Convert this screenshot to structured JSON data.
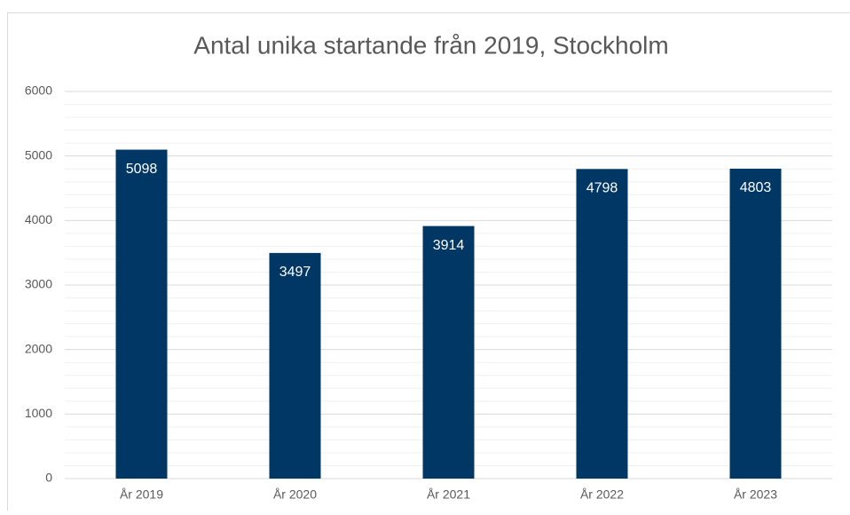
{
  "chart_data": {
    "type": "bar",
    "title": "Antal unika startande från 2019, Stockholm",
    "categories": [
      "År 2019",
      "År 2020",
      "År 2021",
      "År 2022",
      "År 2023"
    ],
    "values": [
      5098,
      3497,
      3914,
      4798,
      4803
    ],
    "color": "#003764",
    "ylim": [
      0,
      6000
    ],
    "yticks": [
      0,
      1000,
      2000,
      3000,
      4000,
      5000,
      6000
    ],
    "yminorticks": [
      200,
      400,
      600,
      800,
      1200,
      1400,
      1600,
      1800,
      2200,
      2400,
      2600,
      2800,
      3200,
      3400,
      3600,
      3800,
      4200,
      4400,
      4600,
      4800,
      5200,
      5400,
      5600,
      5800
    ],
    "grid": true,
    "data_labels": true
  }
}
